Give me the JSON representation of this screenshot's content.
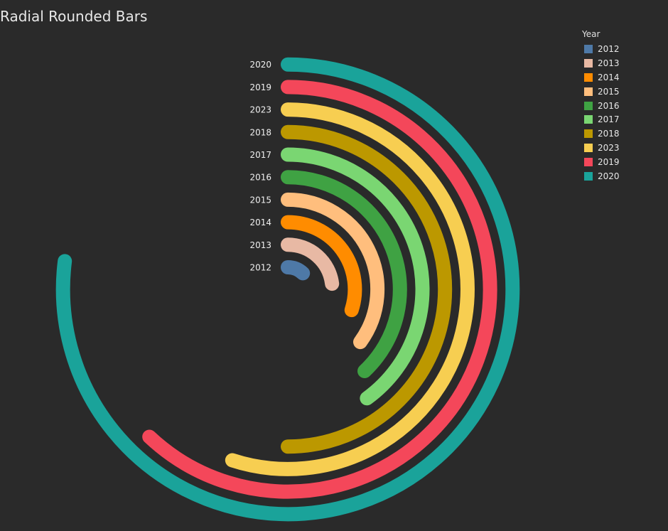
{
  "chart_data": {
    "type": "radial-bar",
    "title": "Radial Rounded Bars",
    "legend": {
      "title": "Year",
      "placement": "top-right",
      "items": [
        {
          "label": "2012",
          "color": "#4e79a7"
        },
        {
          "label": "2013",
          "color": "#e8b9a4"
        },
        {
          "label": "2014",
          "color": "#ff8c00"
        },
        {
          "label": "2015",
          "color": "#ffbe7d"
        },
        {
          "label": "2016",
          "color": "#3fa243"
        },
        {
          "label": "2017",
          "color": "#7ad672"
        },
        {
          "label": "2018",
          "color": "#bc9800"
        },
        {
          "label": "2023",
          "color": "#f7ce51"
        },
        {
          "label": "2019",
          "color": "#f4475a"
        },
        {
          "label": "2020",
          "color": "#1aa39a"
        }
      ]
    },
    "series": [
      {
        "label": "2012",
        "color": "#4e79a7",
        "value": 0.12
      },
      {
        "label": "2013",
        "color": "#e8b9a4",
        "value": 0.23
      },
      {
        "label": "2014",
        "color": "#ff8c00",
        "value": 0.3
      },
      {
        "label": "2015",
        "color": "#ffbe7d",
        "value": 0.35
      },
      {
        "label": "2016",
        "color": "#3fa243",
        "value": 0.38
      },
      {
        "label": "2017",
        "color": "#7ad672",
        "value": 0.4
      },
      {
        "label": "2018",
        "color": "#bc9800",
        "value": 0.5
      },
      {
        "label": "2023",
        "color": "#f7ce51",
        "value": 0.55
      },
      {
        "label": "2019",
        "color": "#f4475a",
        "value": 0.62
      },
      {
        "label": "2020",
        "color": "#1aa39a",
        "value": 0.77
      }
    ]
  }
}
